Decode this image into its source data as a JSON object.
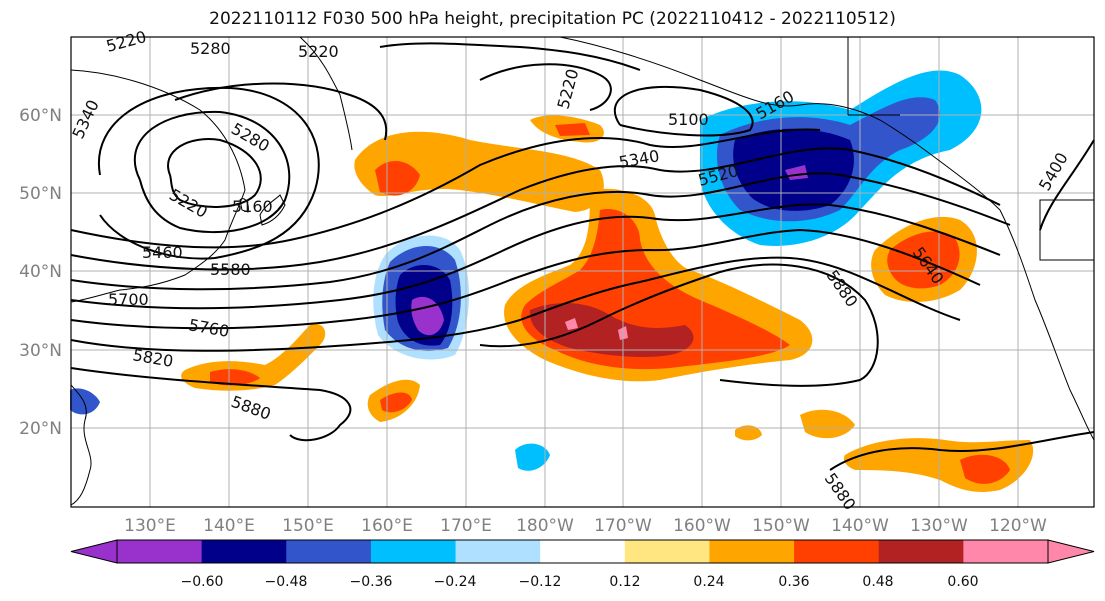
{
  "title": "2022110112 F030 500 hPa height, precipitation PC (2022110412 - 2022110512)",
  "map": {
    "lon_labels": [
      "130°E",
      "140°E",
      "150°E",
      "160°E",
      "170°E",
      "180°W",
      "170°W",
      "160°W",
      "150°W",
      "140°W",
      "130°W",
      "120°W"
    ],
    "lat_labels": [
      "60°N",
      "50°N",
      "40°N",
      "30°N",
      "20°N"
    ],
    "contour_labels": [
      "5220",
      "5280",
      "5220",
      "5220",
      "5340",
      "5280",
      "5220",
      "5160",
      "5460",
      "5580",
      "5700",
      "5760",
      "5820",
      "5880",
      "5100",
      "5340",
      "5520",
      "5160",
      "5880",
      "5640",
      "5400",
      "5880"
    ],
    "grid": true
  },
  "colorbar": {
    "ticks": [
      "−0.60",
      "−0.48",
      "−0.36",
      "−0.24",
      "−0.12",
      "0.12",
      "0.24",
      "0.36",
      "0.48",
      "0.60"
    ],
    "colors": [
      "#9932CC",
      "#00008B",
      "#3355CC",
      "#00BFFF",
      "#B0E0FF",
      "#FFFFFF",
      "#FFE680",
      "#FFA500",
      "#FF4000",
      "#B22222",
      "#FF88AA"
    ]
  }
}
